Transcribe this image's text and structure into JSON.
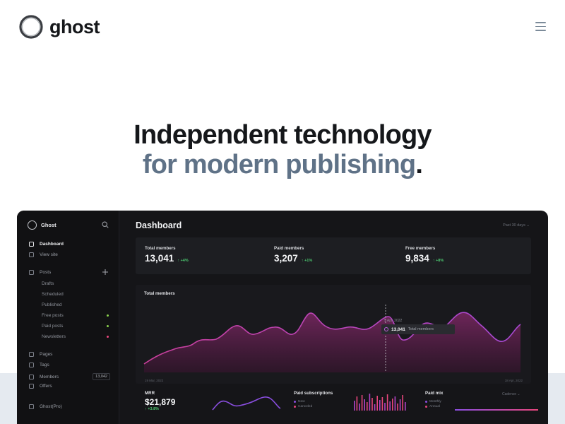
{
  "header": {
    "logo_text": "ghost",
    "menu_icon": "hamburger-icon"
  },
  "hero": {
    "line1": "Independent technology",
    "line2": "for modern publishing",
    "line2_end": "."
  },
  "dashboard": {
    "sidebar": {
      "brand": "Ghost",
      "items": [
        {
          "label": "Dashboard",
          "icon": "home-icon"
        },
        {
          "label": "View site",
          "icon": "browser-icon"
        },
        {
          "label": "Posts",
          "icon": "edit-icon"
        },
        {
          "label": "Pages",
          "icon": "page-icon"
        },
        {
          "label": "Tags",
          "icon": "tag-icon"
        },
        {
          "label": "Members",
          "icon": "members-icon",
          "badge": "13,042"
        },
        {
          "label": "Offers",
          "icon": "percent-icon"
        },
        {
          "label": "Ghost(Pro)",
          "icon": "grid-icon"
        }
      ],
      "post_subitems": [
        {
          "label": "Drafts"
        },
        {
          "label": "Scheduled"
        },
        {
          "label": "Published"
        },
        {
          "label": "Free posts",
          "dot_color": "#8ad14d"
        },
        {
          "label": "Paid posts",
          "dot_color": "#8ad14d"
        },
        {
          "label": "Newsletters",
          "dot_color": "#e8467c"
        }
      ]
    },
    "title": "Dashboard",
    "range": "Past 30 days ⌄",
    "stats": [
      {
        "label": "Total members",
        "value": "13,041",
        "change": "↑ +4%"
      },
      {
        "label": "Paid members",
        "value": "3,207",
        "change": "↑ +1%"
      },
      {
        "label": "Free members",
        "value": "9,834",
        "change": "↑ +8%"
      }
    ],
    "members_chart": {
      "title": "Total members",
      "tooltip_date": "9 Apr, 2022",
      "tooltip_value": "13,041",
      "tooltip_label": "Total members",
      "x_start": "19 Mar, 2022",
      "x_end": "18 Apr, 2022"
    },
    "mrr": {
      "label": "MRR",
      "value": "$21,879",
      "change": "↑ +3.8%"
    },
    "paid_subscriptions": {
      "label": "Paid subscriptions",
      "legend": [
        "New",
        "Canceled"
      ]
    },
    "paid_mix": {
      "label": "Paid mix",
      "cadence": "Cadence ⌄",
      "legend": [
        "Monthly",
        "Annual"
      ]
    },
    "colors": {
      "accent": "#c93f9b",
      "purple": "#8a4ee0",
      "positive": "#4cc870"
    }
  }
}
